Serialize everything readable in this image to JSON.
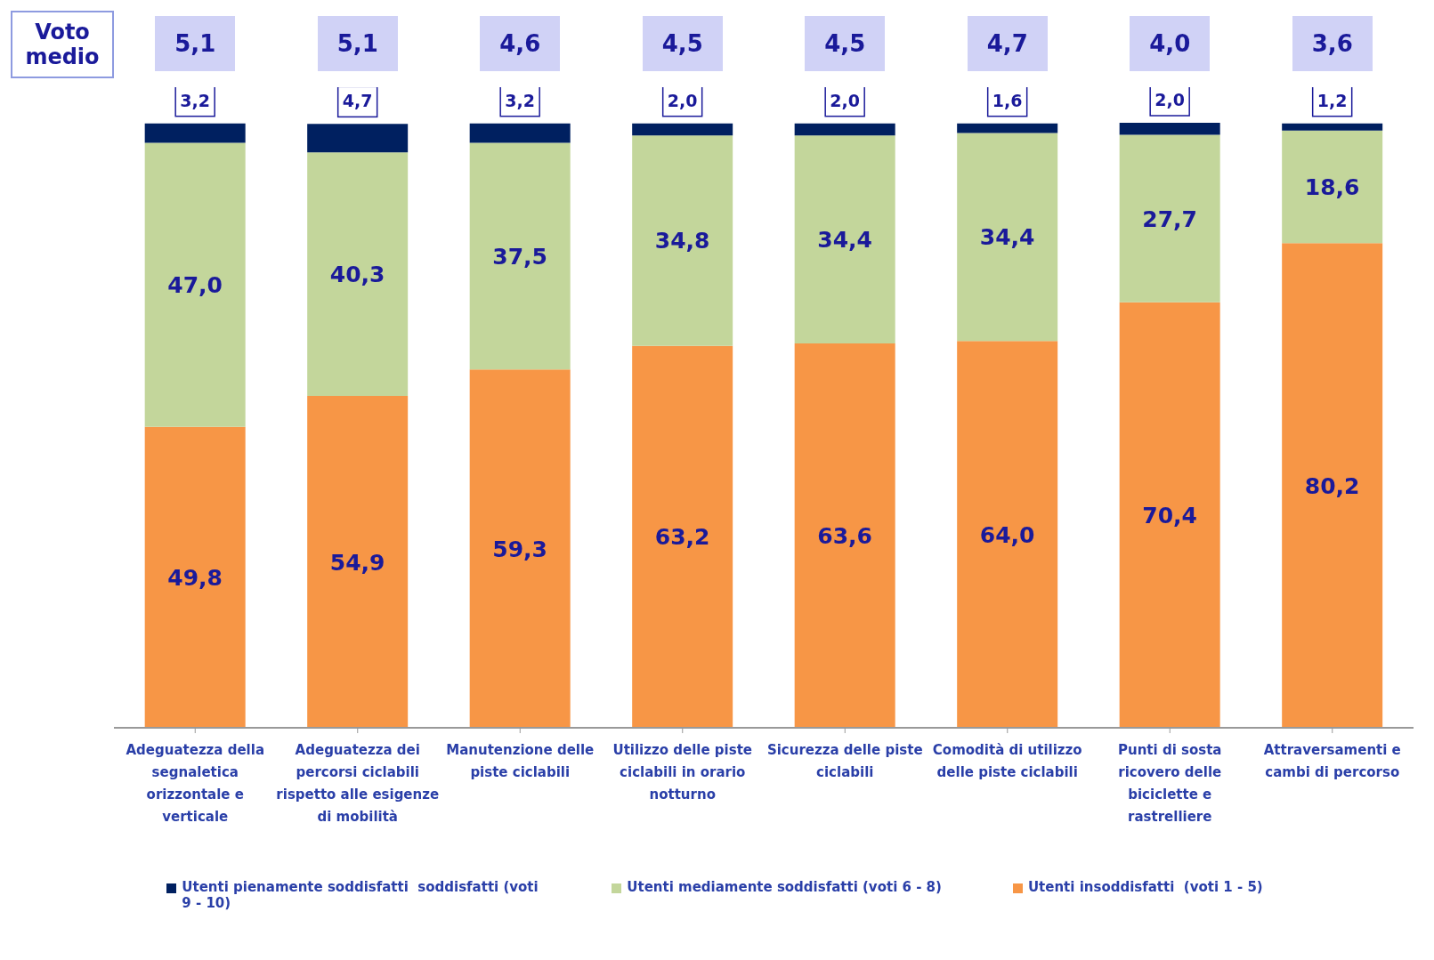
{
  "chart_data": {
    "type": "bar",
    "stacked": true,
    "legend": "bottom",
    "categories": [
      "Adeguatezza della segnaletica orizzontale e verticale",
      "Adeguatezza dei percorsi ciclabili rispetto alle esigenze di mobilità",
      "Manutenzione delle piste ciclabili",
      "Utilizzo delle piste ciclabili in orario notturno",
      "Sicurezza delle piste ciclabili",
      "Comodità di utilizzo delle piste ciclabili",
      "Punti di sosta ricovero delle biciclette e rastrelliere",
      "Attraversamenti e cambi di percorso"
    ],
    "series": [
      {
        "name": "Utenti insoddisfatti  (voti 1 - 5)",
        "color": "#f79646",
        "values": [
          49.8,
          54.9,
          59.3,
          63.2,
          63.6,
          64.0,
          70.4,
          80.2
        ],
        "value_labels": [
          "49,8",
          "54,9",
          "59,3",
          "63,2",
          "63,6",
          "64,0",
          "70,4",
          "80,2"
        ]
      },
      {
        "name": "Utenti mediamente soddisfatti (voti 6 - 8)",
        "color": "#c3d69b",
        "values": [
          47.0,
          40.3,
          37.5,
          34.8,
          34.4,
          34.4,
          27.7,
          18.6
        ],
        "value_labels": [
          "47,0",
          "40,3",
          "37,5",
          "34,8",
          "34,4",
          "34,4",
          "27,7",
          "18,6"
        ]
      },
      {
        "name": "Utenti pienamente soddisfatti  soddisfatti (voti 9 - 10)",
        "color": "#002060",
        "values": [
          3.2,
          4.7,
          3.2,
          2.0,
          2.0,
          1.6,
          2.0,
          1.2
        ],
        "value_labels": [
          "3,2",
          "4,7",
          "3,2",
          "2,0",
          "2,0",
          "1,6",
          "2,0",
          "1,2"
        ]
      }
    ],
    "annotations": [
      "Voto medio",
      "5,1",
      "5,1",
      "4,6",
      "4,5",
      "4,5",
      "4,7",
      "4,0",
      "3,6"
    ]
  }
}
